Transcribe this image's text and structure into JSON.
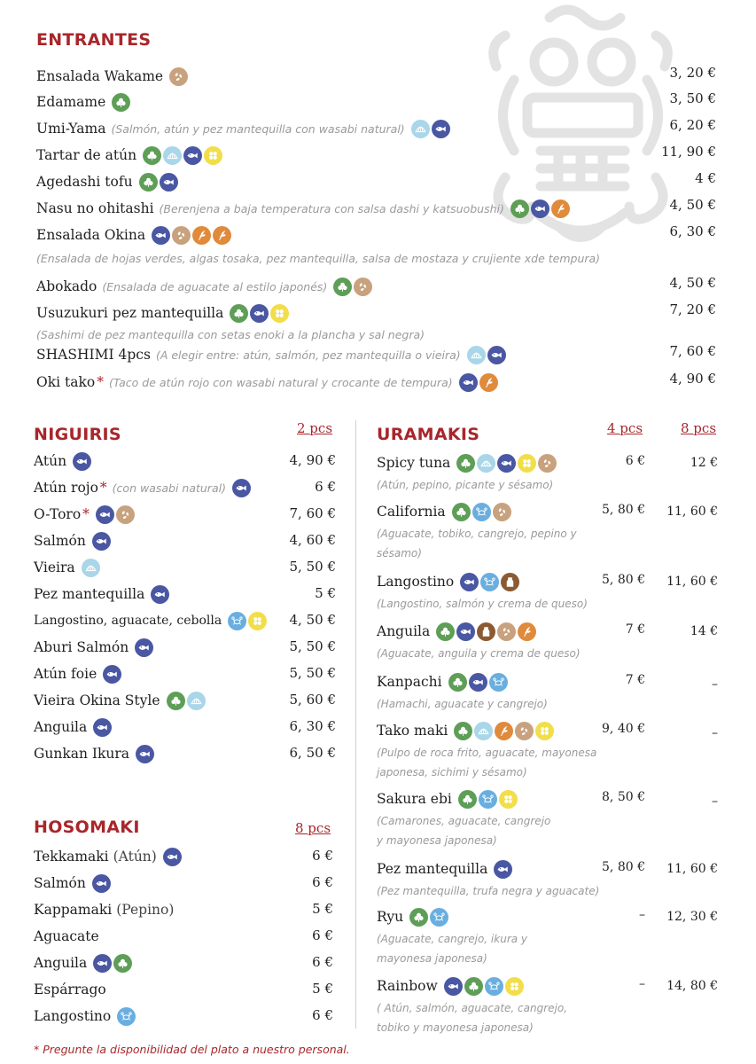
{
  "entrantes": {
    "title": "ENTRANTES",
    "items": [
      {
        "name": "Ensalada Wakame",
        "desc": "",
        "icons": [
          "sesame"
        ],
        "price": "3, 20 €"
      },
      {
        "name": "Edamame",
        "desc": "",
        "icons": [
          "veg"
        ],
        "price": "3, 50 €"
      },
      {
        "name": "Umi-Yama",
        "desc": "(Salmón, atún y pez mantequilla con wasabi natural)",
        "icons": [
          "shell",
          "fish"
        ],
        "price": "6, 20 €"
      },
      {
        "name": "Tartar de atún",
        "desc": "",
        "icons": [
          "veg",
          "shell",
          "fish",
          "egg"
        ],
        "price": "11, 90 €"
      },
      {
        "name": "Agedashi tofu",
        "desc": "",
        "icons": [
          "veg",
          "fish"
        ],
        "price": "4 €"
      },
      {
        "name": "Nasu no ohitashi",
        "desc": "(Berenjena a baja temperatura con salsa dashi y katsuobushi)",
        "icons": [
          "veg",
          "fish",
          "wheat"
        ],
        "price": "4, 50 €"
      },
      {
        "name": "Ensalada Okina",
        "desc": "",
        "icons": [
          "fish",
          "sesame",
          "wheat",
          "wheat"
        ],
        "price": "6, 30 €",
        "subdesc": "(Ensalada de hojas verdes, algas tosaka, pez mantequilla, salsa de mostaza y crujiente xde tempura)"
      },
      {
        "name": "Abokado",
        "desc": "(Ensalada de aguacate al estilo japonés)",
        "icons": [
          "veg",
          "sesame"
        ],
        "price": "4, 50 €"
      },
      {
        "name": "Usuzukuri pez mantequilla",
        "desc": "",
        "icons": [
          "veg",
          "fish",
          "egg"
        ],
        "price": "7, 20 €",
        "subdesc": "(Sashimi de pez mantequilla con setas enoki a la plancha y sal negra)"
      },
      {
        "name": "SHASHIMI 4pcs",
        "desc": "(A elegir entre: atún, salmón, pez mantequilla o vieira)",
        "icons": [
          "shell",
          "fish"
        ],
        "price": "7, 60 €"
      },
      {
        "name": "Oki tako",
        "star": "*",
        "desc": "(Taco de atún rojo con wasabi natural y crocante de tempura)",
        "icons": [
          "fish",
          "wheat"
        ],
        "price": "4, 90 €"
      }
    ]
  },
  "niguiris": {
    "title": "NIGUIRIS",
    "pcs": "2 pcs",
    "items": [
      {
        "name": "Atún",
        "icons": [
          "fish"
        ],
        "price": "4, 90 €"
      },
      {
        "name": "Atún rojo",
        "star": "*",
        "desc": "(con wasabi natural)",
        "icons": [
          "fish"
        ],
        "price": "6 €"
      },
      {
        "name": "O-Toro",
        "star": "*",
        "icons": [
          "fish",
          "sesame"
        ],
        "price": "7, 60 €"
      },
      {
        "name": "Salmón",
        "icons": [
          "fish"
        ],
        "price": "4, 60 €"
      },
      {
        "name": "Vieira",
        "icons": [
          "shell"
        ],
        "price": "5, 50 €"
      },
      {
        "name": "Pez mantequilla",
        "icons": [
          "fish"
        ],
        "price": "5 €"
      },
      {
        "name": "Langostino, aguacate, cebolla",
        "icons": [
          "crab",
          "egg"
        ],
        "price": "4, 50 €"
      },
      {
        "name": "Aburi Salmón",
        "icons": [
          "fish"
        ],
        "price": "5, 50 €"
      },
      {
        "name": "Atún foie",
        "icons": [
          "fish"
        ],
        "price": "5, 50 €"
      },
      {
        "name": "Vieira Okina Style",
        "icons": [
          "veg",
          "shell"
        ],
        "price": "5, 60 €"
      },
      {
        "name": "Anguila",
        "icons": [
          "fish"
        ],
        "price": "6, 30 €"
      },
      {
        "name": "Gunkan Ikura",
        "icons": [
          "fish"
        ],
        "price": "6, 50 €"
      }
    ]
  },
  "hosomaki": {
    "title": "HOSOMAKI",
    "pcs": "8 pcs",
    "items": [
      {
        "name": "Tekkamaki",
        "paren": "(Atún)",
        "icons": [
          "fish"
        ],
        "price": "6 €"
      },
      {
        "name": "Salmón",
        "icons": [
          "fish"
        ],
        "price": "6 €"
      },
      {
        "name": "Kappamaki",
        "paren": "(Pepino)",
        "icons": [],
        "price": "5 €"
      },
      {
        "name": "Aguacate",
        "icons": [],
        "price": "6 €"
      },
      {
        "name": "Anguila",
        "icons": [
          "fish",
          "veg"
        ],
        "price": "6 €"
      },
      {
        "name": "Espárrago",
        "icons": [],
        "price": "5 €"
      },
      {
        "name": "Langostino",
        "icons": [
          "crab"
        ],
        "price": "6 €"
      }
    ]
  },
  "uramakis": {
    "title": "URAMAKIS",
    "pcs4": "4 pcs",
    "pcs8": "8 pcs",
    "items": [
      {
        "name": "Spicy tuna",
        "icons": [
          "veg",
          "shell",
          "fish",
          "egg",
          "sesame"
        ],
        "p4": "6 €",
        "p8": "12 €",
        "desc": [
          "(Atún, pepino, picante y sésamo)"
        ]
      },
      {
        "name": "California",
        "icons": [
          "veg",
          "crab",
          "sesame"
        ],
        "p4": "5, 80 €",
        "p8": "11, 60 €",
        "desc": [
          "(Aguacate, tobiko, cangrejo, pepino y",
          "sésamo)"
        ]
      },
      {
        "name": "Langostino",
        "icons": [
          "fish",
          "crab",
          "milk"
        ],
        "p4": "5, 80 €",
        "p8": "11, 60 €",
        "desc": [
          "(Langostino, salmón y crema de queso)"
        ]
      },
      {
        "name": "Anguila",
        "icons": [
          "veg",
          "fish",
          "milk",
          "sesame",
          "wheat"
        ],
        "p4": "7 €",
        "p8": "14 €",
        "desc": [
          "(Aguacate, anguila y crema de queso)"
        ]
      },
      {
        "name": "Kanpachi",
        "icons": [
          "veg",
          "fish",
          "crab"
        ],
        "p4": "7 €",
        "p8": "–",
        "desc": [
          "(Hamachi, aguacate y cangrejo)"
        ]
      },
      {
        "name": "Tako maki",
        "icons": [
          "veg",
          "shell",
          "wheat",
          "sesame",
          "egg"
        ],
        "p4": "9, 40 €",
        "p8": "–",
        "desc": [
          "(Pulpo de roca frito, aguacate, mayonesa",
          "japonesa, sichimi y sésamo)"
        ]
      },
      {
        "name": "Sakura ebi",
        "icons": [
          "veg",
          "crab",
          "egg"
        ],
        "p4": "8, 50 €",
        "p8": "–",
        "desc": [
          "(Camarones, aguacate, cangrejo",
          "y mayonesa japonesa)"
        ]
      },
      {
        "name": "Pez mantequilla",
        "icons": [
          "fish"
        ],
        "p4": "5, 80 €",
        "p8": "11, 60 €",
        "desc": [
          "(Pez mantequilla, trufa negra y aguacate)"
        ]
      },
      {
        "name": "Ryu",
        "icons": [
          "veg",
          "crab"
        ],
        "p4": "–",
        "p8": "12, 30 €",
        "desc": [
          "(Aguacate, cangrejo, ikura y",
          "mayonesa japonesa)"
        ]
      },
      {
        "name": "Rainbow",
        "icons": [
          "fish",
          "veg",
          "crab",
          "egg"
        ],
        "p4": "–",
        "p8": "14, 80 €",
        "desc": [
          "( Atún, salmón, aguacate, cangrejo,",
          "tobiko y mayonesa japonesa)"
        ]
      }
    ]
  },
  "footer": "* Pregunte la disponibilidad del plato a nuestro personal.",
  "colors": {
    "accent": "#a8262b",
    "fish": "#4a57a2",
    "veg": "#5e9e57",
    "sesame": "#c8a27e",
    "shell": "#a9d6e8",
    "egg": "#f1de4a",
    "wheat": "#e08a3c",
    "crab": "#6aaee0",
    "milk": "#8b5a33"
  }
}
